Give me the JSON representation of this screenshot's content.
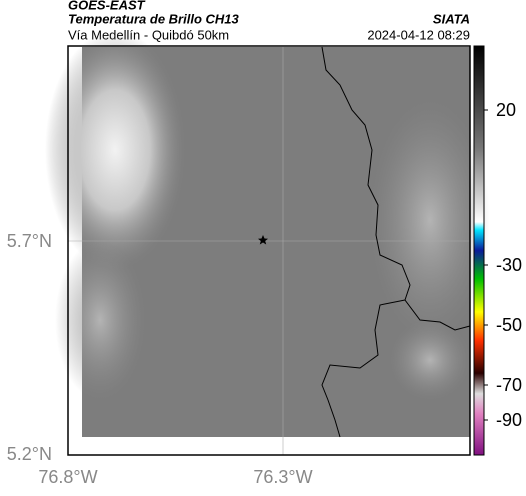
{
  "header": {
    "source": "GOES-EAST",
    "title": "Temperatura de Brillo CH13",
    "subtitle": "Vía Medellín - Quibdó 50km",
    "agency": "SIATA",
    "datetime": "2024-04-12 08:29"
  },
  "map": {
    "lat_labels": [
      "5.7°N",
      "5.2°N"
    ],
    "lon_labels": [
      "76.8°W",
      "76.3°W"
    ]
  },
  "colorbar": {
    "ticks": [
      20,
      -30,
      -50,
      -70,
      -90
    ]
  }
}
